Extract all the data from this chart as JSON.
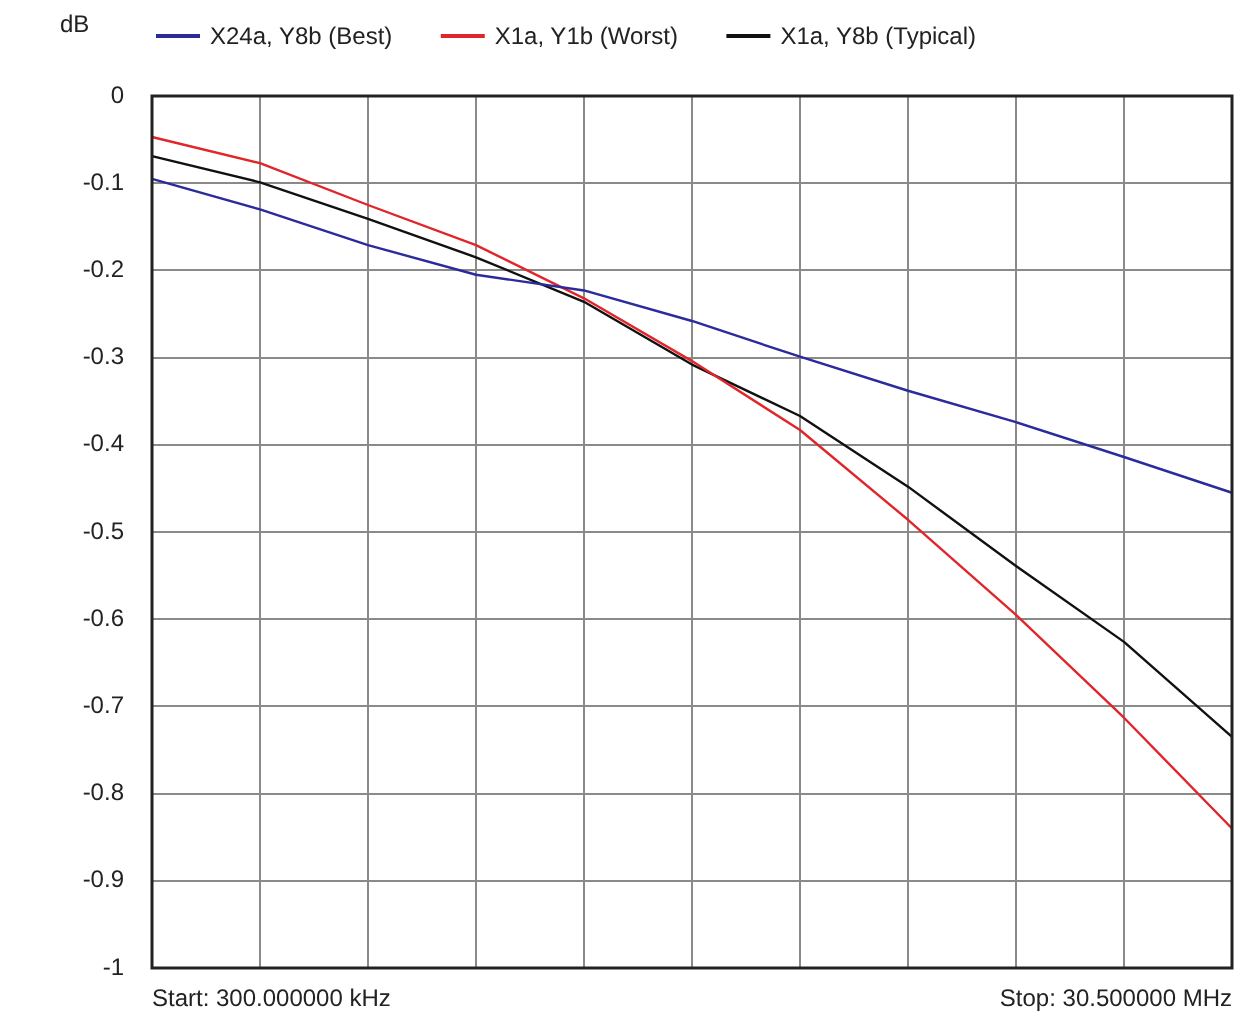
{
  "chart_data": {
    "type": "line",
    "ylabel": "dB",
    "legend": "top left",
    "tick_labels": "y",
    "grid": true,
    "marker": "none",
    "line_style": "solid",
    "categories": [
      null,
      null,
      null,
      null,
      null,
      null,
      null,
      null,
      null,
      null,
      null
    ],
    "ylim": [
      -1,
      0
    ],
    "yticks": [
      0,
      -0.1,
      -0.2,
      -0.3,
      -0.4,
      -0.5,
      -0.6,
      -0.7,
      -0.8,
      -0.9,
      -1
    ],
    "series": [
      {
        "name": "X24a, Y8b (Best)",
        "color": "#2b2b9c",
        "values": [
          -0.095,
          -0.13,
          -0.171,
          -0.205,
          -0.223,
          -0.258,
          -0.299,
          -0.338,
          -0.374,
          -0.414,
          -0.455
        ]
      },
      {
        "name": "X1a, Y1b (Worst)",
        "color": "#e0262b",
        "values": [
          -0.047,
          -0.077,
          -0.125,
          -0.171,
          -0.232,
          -0.304,
          -0.383,
          -0.486,
          -0.595,
          -0.713,
          -0.84
        ]
      },
      {
        "name": "X1a, Y8b (Typical)",
        "color": "#111111",
        "values": [
          -0.069,
          -0.099,
          -0.141,
          -0.185,
          -0.236,
          -0.308,
          -0.367,
          -0.448,
          -0.539,
          -0.626,
          -0.735
        ]
      }
    ],
    "annotations": [
      "Start: 300.000000 kHz",
      "Stop: 30.500000 MHz"
    ]
  }
}
